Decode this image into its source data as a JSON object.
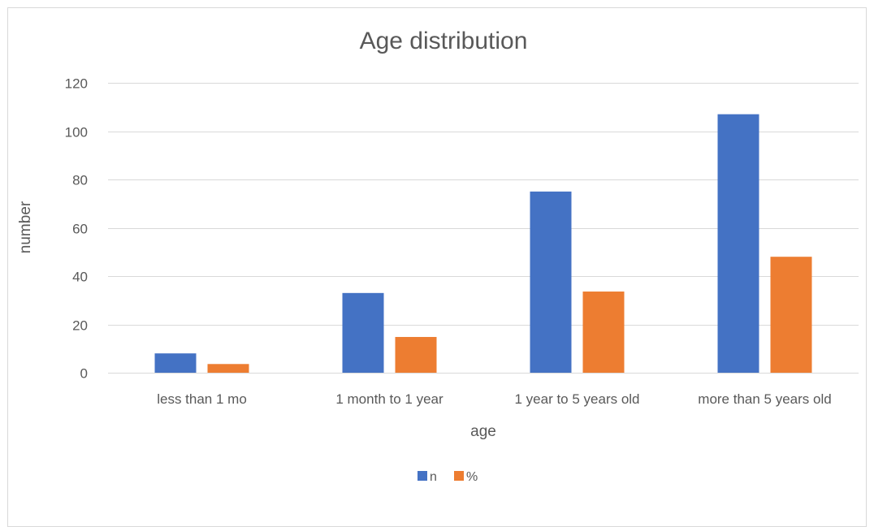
{
  "chart_data": {
    "type": "bar",
    "title": "Age distribution",
    "xlabel": "age",
    "ylabel": "number",
    "categories": [
      "less than 1 mo",
      "1 month to 1 year",
      "1 year to 5 years old",
      "more than 5 years old"
    ],
    "series": [
      {
        "name": "n",
        "color": "#4472C4",
        "values": [
          8,
          33,
          75,
          107
        ]
      },
      {
        "name": "%",
        "color": "#ED7D31",
        "values": [
          3.6,
          14.8,
          33.6,
          48.0
        ]
      }
    ],
    "ylim": [
      0,
      120
    ],
    "yticks": [
      "0",
      "20",
      "40",
      "60",
      "80",
      "100",
      "120"
    ],
    "grid": true,
    "legend_position": "bottom"
  }
}
